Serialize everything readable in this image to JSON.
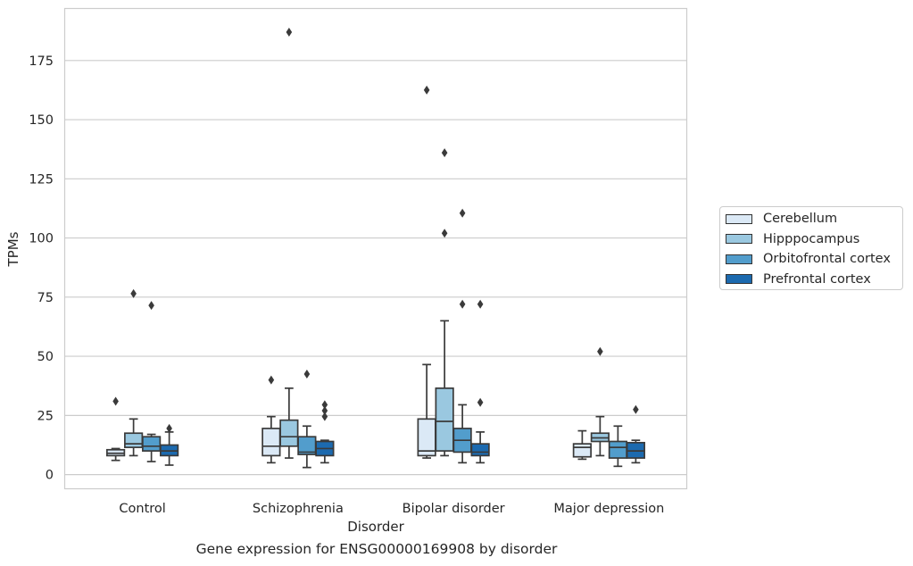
{
  "chart_data": {
    "type": "boxplot",
    "title": "Gene expression for ENSG00000169908 by disorder",
    "xlabel": "Disorder",
    "ylabel": "TPMs",
    "ylim": [
      -6,
      197
    ],
    "yticks": [
      0,
      25,
      50,
      75,
      100,
      125,
      150,
      175
    ],
    "grid": "horizontal",
    "legend_position": "right",
    "categories": [
      "Control",
      "Schizophrenia",
      "Bipolar disorder",
      "Major depression"
    ],
    "series": [
      {
        "name": "Cerebellum",
        "color": "#dbe9f6",
        "boxes": [
          {
            "whislo": 6,
            "q1": 8,
            "med": 9,
            "q3": 10.5,
            "whishi": 11,
            "fliers": [
              31
            ]
          },
          {
            "whislo": 5,
            "q1": 8,
            "med": 12,
            "q3": 19.5,
            "whishi": 24.5,
            "fliers": [
              40
            ]
          },
          {
            "whislo": 7,
            "q1": 8,
            "med": 10,
            "q3": 23.5,
            "whishi": 46.5,
            "fliers": [
              162.5
            ]
          },
          {
            "whislo": 6.5,
            "q1": 7.5,
            "med": 11.5,
            "q3": 13,
            "whishi": 18.5,
            "fliers": []
          }
        ]
      },
      {
        "name": "Hipppocampus",
        "color": "#9ac8e0",
        "boxes": [
          {
            "whislo": 8,
            "q1": 11.5,
            "med": 13,
            "q3": 17.5,
            "whishi": 23.5,
            "fliers": [
              76.5
            ]
          },
          {
            "whislo": 7,
            "q1": 12,
            "med": 16,
            "q3": 23,
            "whishi": 36.5,
            "fliers": [
              187
            ]
          },
          {
            "whislo": 8,
            "q1": 10,
            "med": 22.5,
            "q3": 36.5,
            "whishi": 65,
            "fliers": [
              102,
              136
            ]
          },
          {
            "whislo": 8,
            "q1": 14,
            "med": 15.5,
            "q3": 17.5,
            "whishi": 24.5,
            "fliers": [
              52
            ]
          }
        ]
      },
      {
        "name": "Orbitofrontal cortex",
        "color": "#529dcc",
        "boxes": [
          {
            "whislo": 5.5,
            "q1": 10,
            "med": 12,
            "q3": 16,
            "whishi": 17,
            "fliers": [
              71.5
            ]
          },
          {
            "whislo": 3,
            "q1": 8.5,
            "med": 9.5,
            "q3": 16,
            "whishi": 20.5,
            "fliers": [
              42.5
            ]
          },
          {
            "whislo": 5,
            "q1": 9.5,
            "med": 14.5,
            "q3": 19.5,
            "whishi": 29.5,
            "fliers": [
              72,
              110.5
            ]
          },
          {
            "whislo": 3.5,
            "q1": 7,
            "med": 11.5,
            "q3": 14,
            "whishi": 20.5,
            "fliers": []
          }
        ]
      },
      {
        "name": "Prefrontal cortex",
        "color": "#1c6aaf",
        "boxes": [
          {
            "whislo": 4,
            "q1": 8,
            "med": 10,
            "q3": 12.5,
            "whishi": 18,
            "fliers": [
              19.5
            ]
          },
          {
            "whislo": 5,
            "q1": 8,
            "med": 11,
            "q3": 14,
            "whishi": 14.5,
            "fliers": [
              24.5,
              27,
              29.5
            ]
          },
          {
            "whislo": 5,
            "q1": 8,
            "med": 9.5,
            "q3": 13,
            "whishi": 18,
            "fliers": [
              30.5,
              72
            ]
          },
          {
            "whislo": 5,
            "q1": 7,
            "med": 10,
            "q3": 13.5,
            "whishi": 14.5,
            "fliers": [
              27.5
            ]
          }
        ]
      }
    ]
  }
}
